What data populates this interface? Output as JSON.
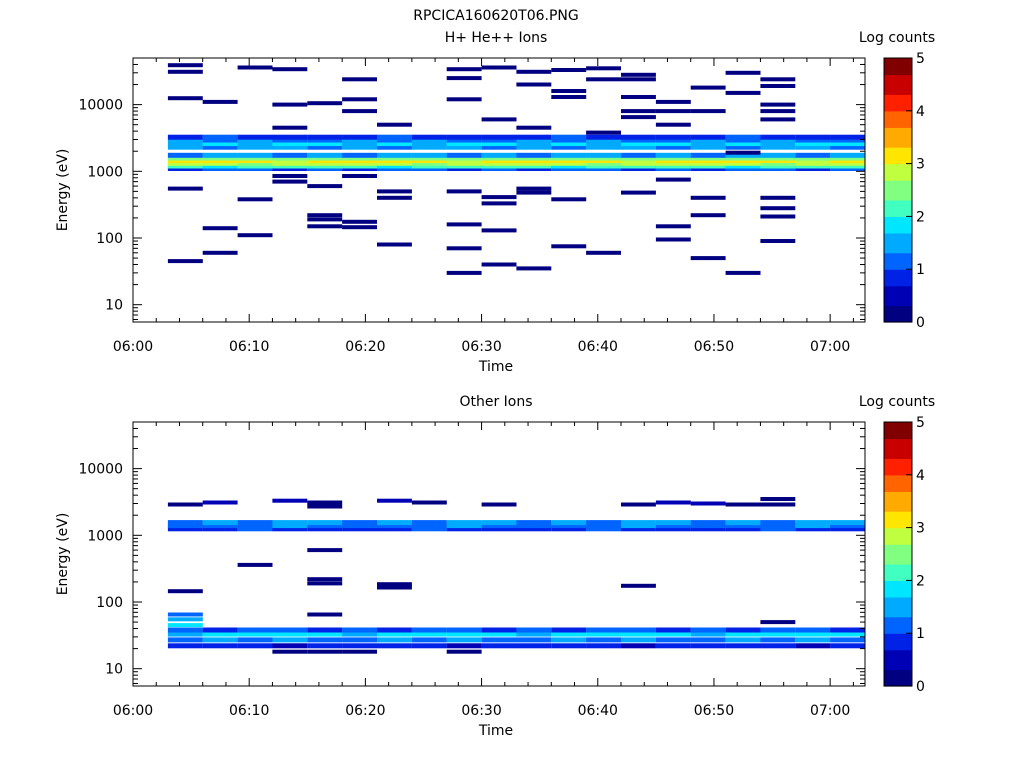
{
  "figure": {
    "title": "RPCICA160620T06.PNG"
  },
  "colormap": [
    "#000080",
    "#0000b4",
    "#0022e6",
    "#0064ff",
    "#00aaff",
    "#00e6ff",
    "#40ffc0",
    "#80ff80",
    "#c0ff40",
    "#ffe600",
    "#ffaa00",
    "#ff6400",
    "#ff2000",
    "#c80000",
    "#800000"
  ],
  "chart_data": [
    {
      "type": "heatmap",
      "title": "H+ He++ Ions",
      "xlabel": "Time",
      "ylabel": "Energy (eV)",
      "x_ticks": [
        "06:00",
        "06:10",
        "06:20",
        "06:30",
        "06:40",
        "06:50",
        "07:00"
      ],
      "x_range_minutes": [
        0,
        63
      ],
      "y_scale": "log",
      "y_range": [
        5.5,
        50000
      ],
      "y_ticks": [
        "10",
        "100",
        "1000",
        "10000"
      ],
      "colorbar": {
        "label": "Log counts",
        "range": [
          0,
          5
        ],
        "ticks": [
          "0",
          "1",
          "2",
          "3",
          "4",
          "5"
        ]
      },
      "time_bin_minutes": 3,
      "time_bins": [
        3,
        6,
        9,
        12,
        15,
        18,
        21,
        24,
        27,
        30,
        33,
        36,
        39,
        42,
        45,
        48,
        51,
        54,
        57,
        60
      ],
      "persistent_bands": [
        {
          "e": 1100,
          "v": 1.0
        },
        {
          "e": 1200,
          "v": 2.1
        },
        {
          "e": 1320,
          "v": 2.8
        },
        {
          "e": 1450,
          "v": 3.1
        },
        {
          "e": 1580,
          "v": 2.5
        },
        {
          "e": 1740,
          "v": 1.4
        },
        {
          "e": 2300,
          "v": 1.4
        },
        {
          "e": 2600,
          "v": 1.7
        },
        {
          "e": 2950,
          "v": 1.3
        },
        {
          "e": 3250,
          "v": 0.9
        }
      ],
      "sparse_counts": [
        {
          "t": 3,
          "e": 45,
          "v": 0.1
        },
        {
          "t": 3,
          "e": 550,
          "v": 0.1
        },
        {
          "t": 3,
          "e": 12500,
          "v": 0.1
        },
        {
          "t": 3,
          "e": 31000,
          "v": 0.1
        },
        {
          "t": 3,
          "e": 39000,
          "v": 0.1
        },
        {
          "t": 6,
          "e": 60,
          "v": 0.1
        },
        {
          "t": 6,
          "e": 140,
          "v": 0.1
        },
        {
          "t": 6,
          "e": 11000,
          "v": 0.1
        },
        {
          "t": 9,
          "e": 110,
          "v": 0.1
        },
        {
          "t": 9,
          "e": 380,
          "v": 0.1
        },
        {
          "t": 9,
          "e": 36000,
          "v": 0.1
        },
        {
          "t": 12,
          "e": 700,
          "v": 0.1
        },
        {
          "t": 12,
          "e": 850,
          "v": 0.1
        },
        {
          "t": 12,
          "e": 4500,
          "v": 0.1
        },
        {
          "t": 12,
          "e": 10000,
          "v": 0.1
        },
        {
          "t": 12,
          "e": 34000,
          "v": 0.1
        },
        {
          "t": 15,
          "e": 150,
          "v": 0.1
        },
        {
          "t": 15,
          "e": 190,
          "v": 0.1
        },
        {
          "t": 15,
          "e": 220,
          "v": 0.1
        },
        {
          "t": 15,
          "e": 600,
          "v": 0.1
        },
        {
          "t": 15,
          "e": 10500,
          "v": 0.1
        },
        {
          "t": 18,
          "e": 145,
          "v": 0.1
        },
        {
          "t": 18,
          "e": 175,
          "v": 0.1
        },
        {
          "t": 18,
          "e": 850,
          "v": 0.1
        },
        {
          "t": 18,
          "e": 8000,
          "v": 0.1
        },
        {
          "t": 18,
          "e": 12000,
          "v": 0.1
        },
        {
          "t": 18,
          "e": 24000,
          "v": 0.1
        },
        {
          "t": 21,
          "e": 80,
          "v": 0.1
        },
        {
          "t": 21,
          "e": 400,
          "v": 0.1
        },
        {
          "t": 21,
          "e": 500,
          "v": 0.1
        },
        {
          "t": 21,
          "e": 5000,
          "v": 0.1
        },
        {
          "t": 27,
          "e": 30,
          "v": 0.1
        },
        {
          "t": 27,
          "e": 70,
          "v": 0.1
        },
        {
          "t": 27,
          "e": 160,
          "v": 0.1
        },
        {
          "t": 27,
          "e": 500,
          "v": 0.1
        },
        {
          "t": 27,
          "e": 12000,
          "v": 0.1
        },
        {
          "t": 27,
          "e": 25000,
          "v": 0.1
        },
        {
          "t": 27,
          "e": 34000,
          "v": 0.1
        },
        {
          "t": 30,
          "e": 40,
          "v": 0.1
        },
        {
          "t": 30,
          "e": 130,
          "v": 0.1
        },
        {
          "t": 30,
          "e": 330,
          "v": 0.1
        },
        {
          "t": 30,
          "e": 410,
          "v": 0.1
        },
        {
          "t": 30,
          "e": 6000,
          "v": 0.1
        },
        {
          "t": 30,
          "e": 36000,
          "v": 0.1
        },
        {
          "t": 33,
          "e": 35,
          "v": 0.1
        },
        {
          "t": 33,
          "e": 480,
          "v": 0.1
        },
        {
          "t": 33,
          "e": 550,
          "v": 0.1
        },
        {
          "t": 33,
          "e": 4500,
          "v": 0.1
        },
        {
          "t": 33,
          "e": 20000,
          "v": 0.1
        },
        {
          "t": 33,
          "e": 31000,
          "v": 0.1
        },
        {
          "t": 36,
          "e": 75,
          "v": 0.1
        },
        {
          "t": 36,
          "e": 380,
          "v": 0.1
        },
        {
          "t": 36,
          "e": 13000,
          "v": 0.1
        },
        {
          "t": 36,
          "e": 16000,
          "v": 0.1
        },
        {
          "t": 36,
          "e": 33000,
          "v": 0.1
        },
        {
          "t": 39,
          "e": 60,
          "v": 0.1
        },
        {
          "t": 39,
          "e": 3800,
          "v": 0.1
        },
        {
          "t": 39,
          "e": 24000,
          "v": 0.1
        },
        {
          "t": 39,
          "e": 35000,
          "v": 0.1
        },
        {
          "t": 42,
          "e": 480,
          "v": 0.1
        },
        {
          "t": 42,
          "e": 6500,
          "v": 0.1
        },
        {
          "t": 42,
          "e": 8000,
          "v": 0.1
        },
        {
          "t": 42,
          "e": 13000,
          "v": 0.1
        },
        {
          "t": 42,
          "e": 24000,
          "v": 0.1
        },
        {
          "t": 42,
          "e": 28000,
          "v": 0.1
        },
        {
          "t": 45,
          "e": 95,
          "v": 0.1
        },
        {
          "t": 45,
          "e": 150,
          "v": 0.1
        },
        {
          "t": 45,
          "e": 750,
          "v": 0.1
        },
        {
          "t": 45,
          "e": 5000,
          "v": 0.1
        },
        {
          "t": 45,
          "e": 8000,
          "v": 0.1
        },
        {
          "t": 45,
          "e": 11000,
          "v": 0.1
        },
        {
          "t": 48,
          "e": 50,
          "v": 0.1
        },
        {
          "t": 48,
          "e": 220,
          "v": 0.1
        },
        {
          "t": 48,
          "e": 400,
          "v": 0.1
        },
        {
          "t": 48,
          "e": 8000,
          "v": 0.1
        },
        {
          "t": 48,
          "e": 18000,
          "v": 0.1
        },
        {
          "t": 51,
          "e": 30,
          "v": 0.1
        },
        {
          "t": 51,
          "e": 1900,
          "v": 0.1
        },
        {
          "t": 51,
          "e": 15000,
          "v": 0.1
        },
        {
          "t": 51,
          "e": 30000,
          "v": 0.1
        },
        {
          "t": 54,
          "e": 90,
          "v": 0.1
        },
        {
          "t": 54,
          "e": 210,
          "v": 0.1
        },
        {
          "t": 54,
          "e": 280,
          "v": 0.1
        },
        {
          "t": 54,
          "e": 400,
          "v": 0.1
        },
        {
          "t": 54,
          "e": 6000,
          "v": 0.1
        },
        {
          "t": 54,
          "e": 8000,
          "v": 0.1
        },
        {
          "t": 54,
          "e": 10000,
          "v": 0.1
        },
        {
          "t": 54,
          "e": 19000,
          "v": 0.1
        },
        {
          "t": 54,
          "e": 24000,
          "v": 0.1
        }
      ]
    },
    {
      "type": "heatmap",
      "title": "Other Ions",
      "xlabel": "Time",
      "ylabel": "Energy (eV)",
      "x_ticks": [
        "06:00",
        "06:10",
        "06:20",
        "06:30",
        "06:40",
        "06:50",
        "07:00"
      ],
      "x_range_minutes": [
        0,
        63
      ],
      "y_scale": "log",
      "y_range": [
        5.5,
        50000
      ],
      "y_ticks": [
        "10",
        "100",
        "1000",
        "10000"
      ],
      "colorbar": {
        "label": "Log counts",
        "range": [
          0,
          5
        ],
        "ticks": [
          "0",
          "1",
          "2",
          "3",
          "4",
          "5"
        ]
      },
      "time_bin_minutes": 3,
      "time_bins": [
        3,
        6,
        9,
        12,
        15,
        18,
        21,
        24,
        27,
        30,
        33,
        36,
        39,
        42,
        45,
        48,
        51,
        54,
        57,
        60
      ],
      "persistent_bands": [
        {
          "e": 1250,
          "v": 0.9
        },
        {
          "e": 1400,
          "v": 1.2
        },
        {
          "e": 1550,
          "v": 1.4
        },
        {
          "e": 22,
          "v": 0.8
        },
        {
          "e": 27,
          "v": 1.3
        },
        {
          "e": 33,
          "v": 1.8
        },
        {
          "e": 38,
          "v": 1.0
        }
      ],
      "sparse_counts": [
        {
          "t": 3,
          "e": 45,
          "v": 1.9
        },
        {
          "t": 3,
          "e": 55,
          "v": 1.4
        },
        {
          "t": 3,
          "e": 65,
          "v": 1.0
        },
        {
          "t": 3,
          "e": 145,
          "v": 0.1
        },
        {
          "t": 3,
          "e": 2900,
          "v": 0.3
        },
        {
          "t": 6,
          "e": 3100,
          "v": 0.5
        },
        {
          "t": 9,
          "e": 360,
          "v": 0.1
        },
        {
          "t": 12,
          "e": 18,
          "v": 0.2
        },
        {
          "t": 12,
          "e": 3300,
          "v": 0.4
        },
        {
          "t": 15,
          "e": 18,
          "v": 0.2
        },
        {
          "t": 15,
          "e": 65,
          "v": 0.1
        },
        {
          "t": 15,
          "e": 190,
          "v": 0.1
        },
        {
          "t": 15,
          "e": 220,
          "v": 0.1
        },
        {
          "t": 15,
          "e": 600,
          "v": 0.1
        },
        {
          "t": 15,
          "e": 2700,
          "v": 0.2
        },
        {
          "t": 15,
          "e": 3100,
          "v": 0.3
        },
        {
          "t": 18,
          "e": 18,
          "v": 0.2
        },
        {
          "t": 21,
          "e": 165,
          "v": 0.1
        },
        {
          "t": 21,
          "e": 185,
          "v": 0.1
        },
        {
          "t": 21,
          "e": 3300,
          "v": 0.5
        },
        {
          "t": 24,
          "e": 3100,
          "v": 0.3
        },
        {
          "t": 27,
          "e": 18,
          "v": 0.2
        },
        {
          "t": 30,
          "e": 2900,
          "v": 0.1
        },
        {
          "t": 42,
          "e": 175,
          "v": 0.1
        },
        {
          "t": 42,
          "e": 2900,
          "v": 0.1
        },
        {
          "t": 45,
          "e": 3100,
          "v": 0.4
        },
        {
          "t": 48,
          "e": 3000,
          "v": 0.4
        },
        {
          "t": 51,
          "e": 2900,
          "v": 0.1
        },
        {
          "t": 54,
          "e": 50,
          "v": 0.1
        },
        {
          "t": 54,
          "e": 3500,
          "v": 0.1
        },
        {
          "t": 54,
          "e": 2900,
          "v": 0.3
        }
      ]
    }
  ]
}
